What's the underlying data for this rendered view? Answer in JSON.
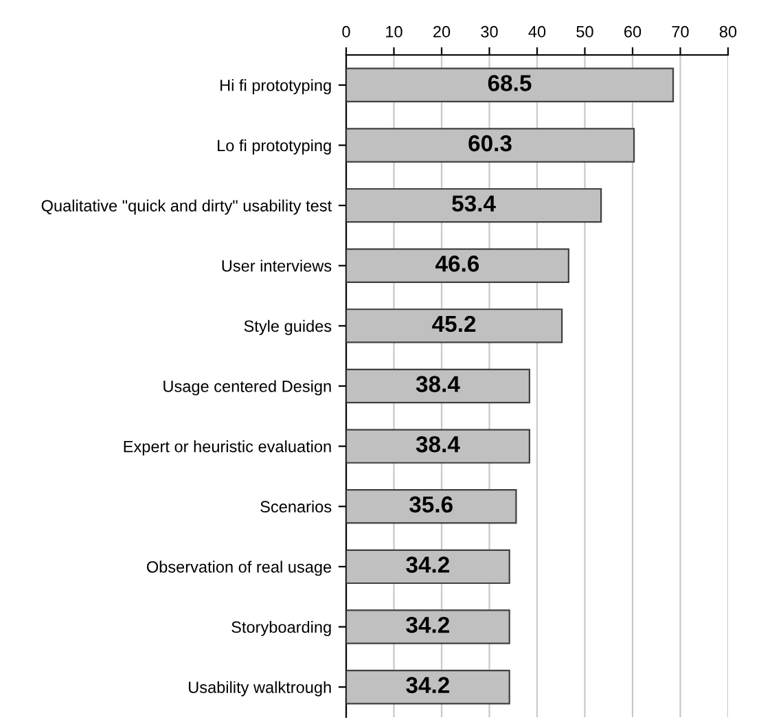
{
  "chart_data": {
    "type": "bar",
    "orientation": "horizontal",
    "categories": [
      "Hi fi prototyping",
      "Lo fi prototyping",
      "Qualitative \"quick and dirty\" usability test",
      "User interviews",
      "Style guides",
      "Usage centered Design",
      "Expert or heuristic evaluation",
      "Scenarios",
      "Observation of real usage",
      "Storyboarding",
      "Usability walktrough"
    ],
    "values": [
      68.5,
      60.3,
      53.4,
      46.6,
      45.2,
      38.4,
      38.4,
      35.6,
      34.2,
      34.2,
      34.2
    ],
    "color": "#c0c0c0",
    "xlim": [
      0,
      80
    ],
    "xticks": [
      0,
      10,
      20,
      30,
      40,
      50,
      60,
      70,
      80
    ],
    "grid": "x",
    "data_labels": true,
    "legend": false
  }
}
